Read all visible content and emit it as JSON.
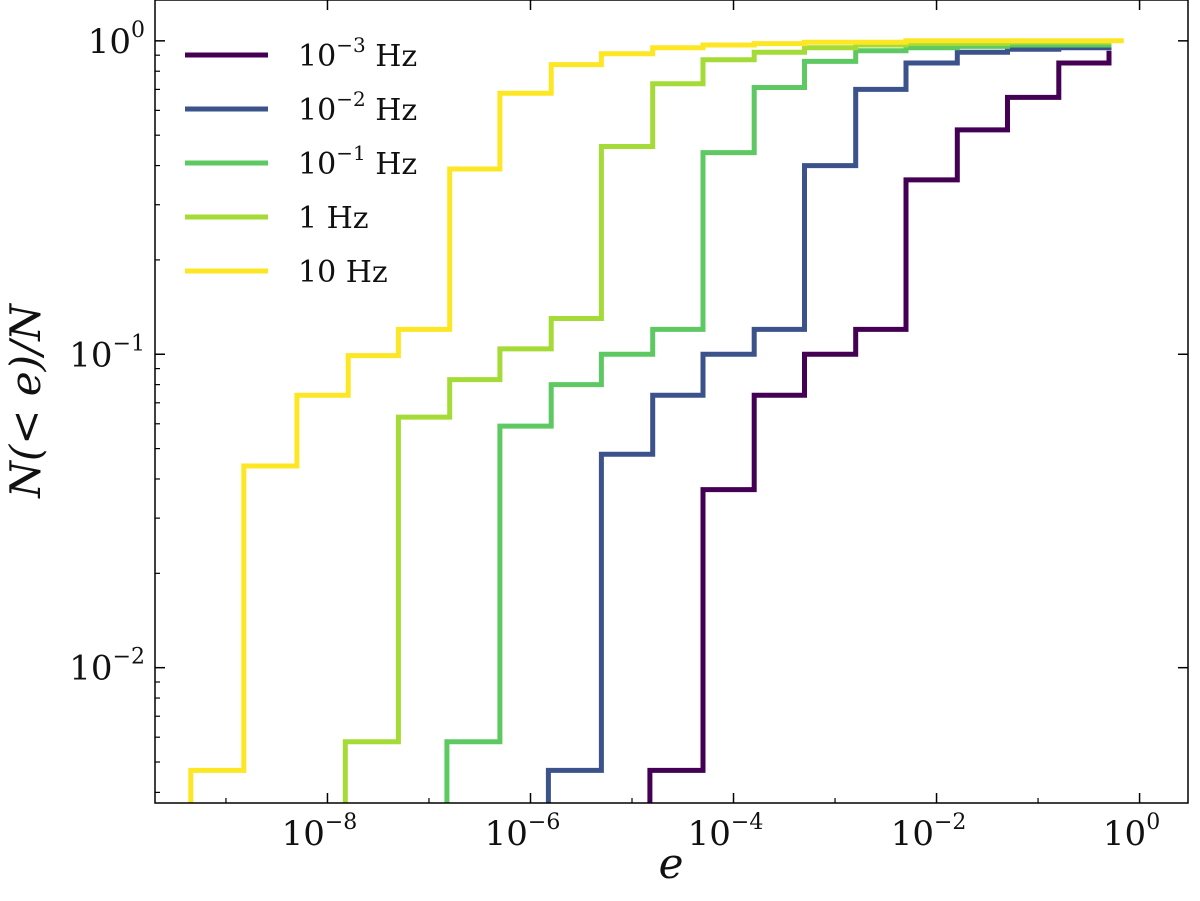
{
  "chart_data": {
    "type": "line",
    "xlabel": "e",
    "ylabel": "N(< e)/N",
    "x_scale": "log",
    "y_scale": "log",
    "xlim": [
      2e-10,
      3
    ],
    "ylim": [
      0.0037,
      1.35
    ],
    "x_ticks": [
      {
        "value": 1e-08,
        "base": "10",
        "exp": "−8"
      },
      {
        "value": 1e-06,
        "base": "10",
        "exp": "−6"
      },
      {
        "value": 0.0001,
        "base": "10",
        "exp": "−4"
      },
      {
        "value": 0.01,
        "base": "10",
        "exp": "−2"
      },
      {
        "value": 1,
        "base": "10",
        "exp": "0"
      }
    ],
    "y_ticks": [
      {
        "value": 0.01,
        "base": "10",
        "exp": "−2"
      },
      {
        "value": 0.1,
        "base": "10",
        "exp": "−1"
      },
      {
        "value": 1,
        "base": "10",
        "exp": "0"
      }
    ],
    "grid": false,
    "legend_position": "upper-left",
    "series": [
      {
        "name": "10−3 Hz",
        "legend_base": "10",
        "legend_exp": "−3",
        "legend_unit": "Hz",
        "color": "#440154",
        "x": [
          1.5e-05,
          5e-05,
          0.00016,
          0.0005,
          0.0016,
          0.005,
          0.016,
          0.05,
          0.16,
          0.5
        ],
        "y": [
          0.0047,
          0.037,
          0.074,
          0.1,
          0.12,
          0.36,
          0.52,
          0.66,
          0.85,
          0.93
        ]
      },
      {
        "name": "10−2 Hz",
        "legend_base": "10",
        "legend_exp": "−2",
        "legend_unit": "Hz",
        "color": "#3b528b",
        "x": [
          1.5e-06,
          5e-06,
          1.6e-05,
          5e-05,
          0.00016,
          0.0005,
          0.0016,
          0.005,
          0.016,
          0.05,
          0.16,
          0.5
        ],
        "y": [
          0.0047,
          0.048,
          0.074,
          0.1,
          0.12,
          0.4,
          0.7,
          0.85,
          0.92,
          0.94,
          0.95,
          0.96
        ]
      },
      {
        "name": "10−1 Hz",
        "legend_base": "10",
        "legend_exp": "−1",
        "legend_unit": "Hz",
        "color": "#5ec962",
        "x": [
          1.5e-07,
          5e-07,
          1.6e-06,
          5e-06,
          1.6e-05,
          5e-05,
          0.00016,
          0.0005,
          0.0016,
          0.005,
          0.016,
          0.05,
          0.16,
          0.5
        ],
        "y": [
          0.0058,
          0.059,
          0.08,
          0.1,
          0.12,
          0.44,
          0.71,
          0.86,
          0.93,
          0.95,
          0.96,
          0.97,
          0.97,
          0.98
        ]
      },
      {
        "name": "1 Hz",
        "legend_base": "1",
        "legend_exp": "",
        "legend_unit": "Hz",
        "color": "#a5db36",
        "x": [
          1.5e-08,
          5e-08,
          1.6e-07,
          5e-07,
          1.6e-06,
          5e-06,
          1.6e-05,
          5e-05,
          0.00016,
          0.0005,
          0.0016,
          0.005,
          0.016,
          0.05,
          0.16,
          0.5
        ],
        "y": [
          0.0058,
          0.063,
          0.083,
          0.104,
          0.13,
          0.46,
          0.73,
          0.87,
          0.92,
          0.95,
          0.97,
          0.98,
          0.98,
          0.99,
          0.99,
          1.0
        ]
      },
      {
        "name": "10 Hz",
        "legend_base": "10",
        "legend_exp": "",
        "legend_unit": "Hz",
        "color": "#fde725",
        "x": [
          4.5e-10,
          1.5e-09,
          5e-09,
          1.6e-08,
          5e-08,
          1.6e-07,
          5e-07,
          1.6e-06,
          5e-06,
          1.6e-05,
          5e-05,
          0.00016,
          0.0005,
          0.0016,
          0.005,
          0.016,
          0.05,
          0.16,
          0.7
        ],
        "y": [
          0.0047,
          0.044,
          0.074,
          0.099,
          0.12,
          0.39,
          0.68,
          0.84,
          0.91,
          0.95,
          0.97,
          0.98,
          0.99,
          0.99,
          1.0,
          1.0,
          1.0,
          1.0,
          1.0
        ]
      }
    ]
  }
}
